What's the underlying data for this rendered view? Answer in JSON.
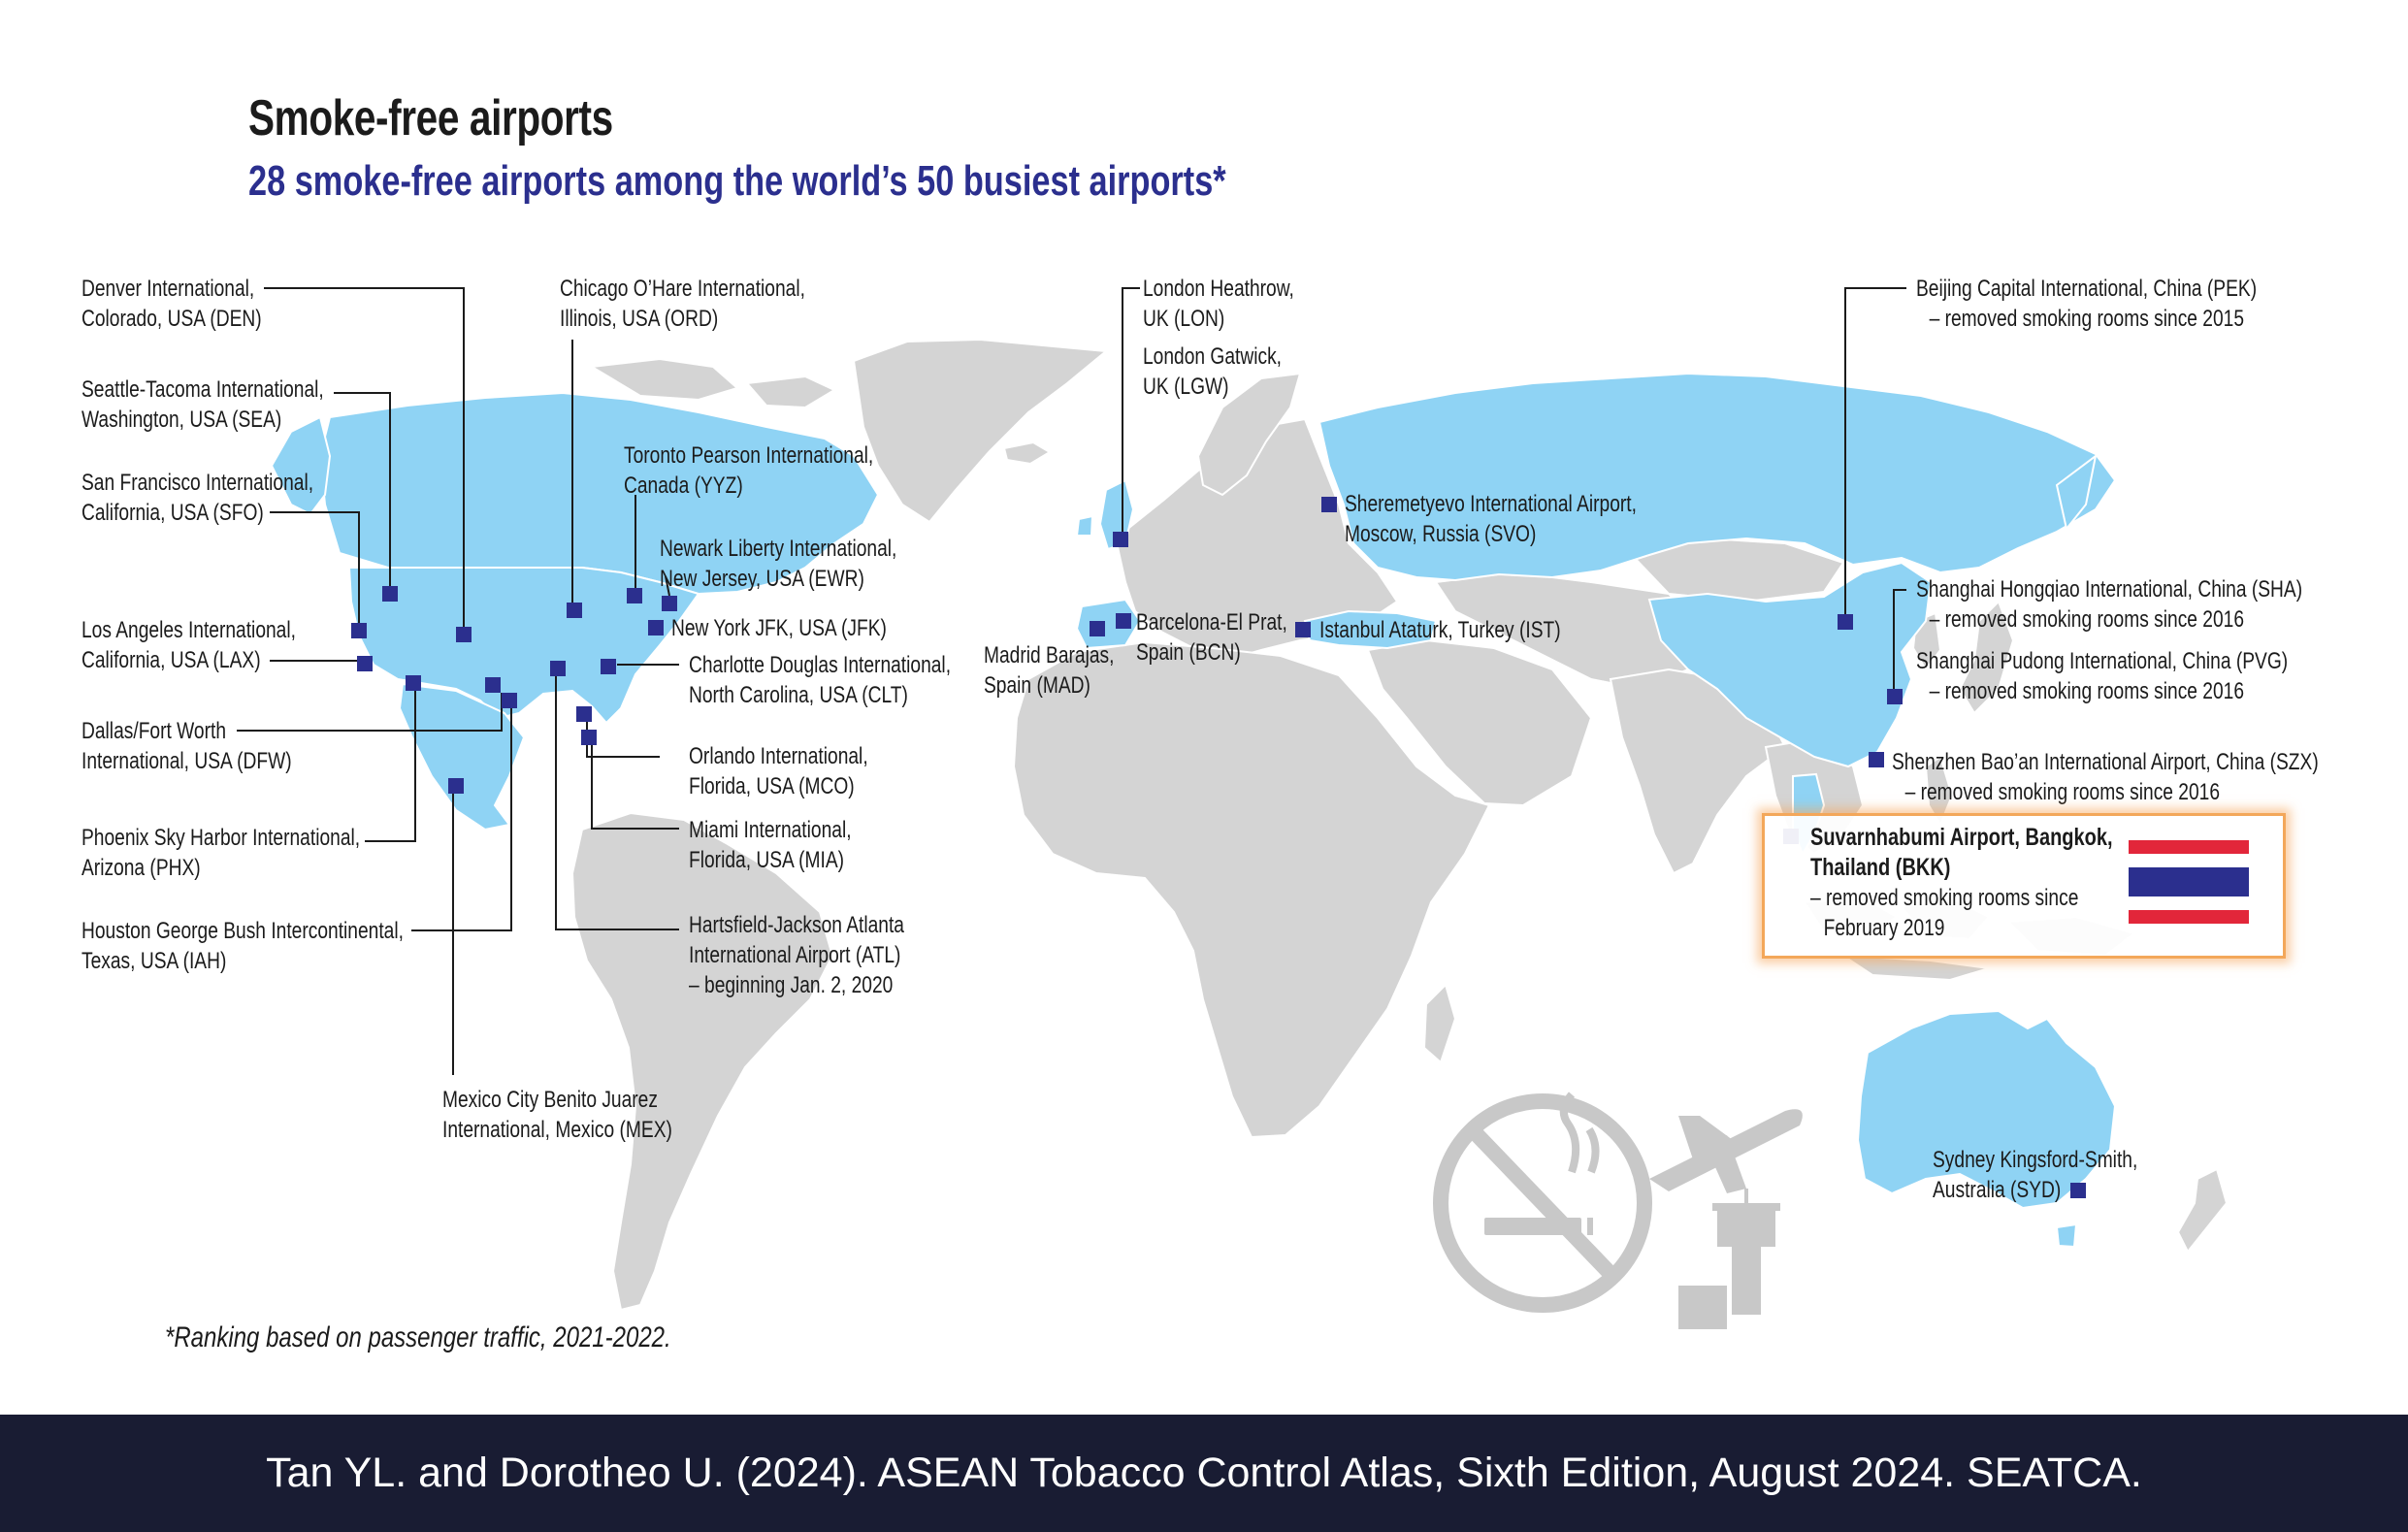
{
  "title": "Smoke-free airports",
  "subtitle": "28 smoke-free airports among the world’s 50 busiest airports*",
  "footnote": "*Ranking based on passenger traffic, 2021-2022.",
  "source": "Tan YL. and Dorotheo U. (2024). ASEAN Tobacco Control Atlas, Sixth Edition, August 2024. SEATCA.",
  "colors": {
    "smoke_free_country": "#8fd3f4",
    "other_country": "#d4d4d4",
    "marker": "#2b2f8e",
    "highlight_border": "#f3a75a",
    "footer_bg": "#191c33",
    "icon": "#c8c8c8"
  },
  "airports": {
    "den": [
      "Denver International,",
      "Colorado, USA (DEN)"
    ],
    "sea": [
      "Seattle-Tacoma International,",
      "Washington, USA (SEA)"
    ],
    "sfo": [
      "San Francisco International,",
      "California, USA (SFO)"
    ],
    "lax": [
      "Los Angeles International,",
      "California, USA (LAX)"
    ],
    "dfw": [
      "Dallas/Fort Worth",
      "International, USA (DFW)"
    ],
    "phx": [
      "Phoenix Sky Harbor International,",
      "Arizona (PHX)"
    ],
    "iah": [
      "Houston George Bush Intercontinental,",
      "Texas, USA (IAH)"
    ],
    "mex": [
      "Mexico City Benito Juarez",
      "International, Mexico (MEX)"
    ],
    "ord": [
      "Chicago O’Hare International,",
      "Illinois, USA (ORD)"
    ],
    "yyz": [
      "Toronto Pearson International,",
      "Canada (YYZ)"
    ],
    "ewr": [
      "Newark Liberty International,",
      "New Jersey, USA (EWR)"
    ],
    "jfk": [
      "New York JFK, USA (JFK)"
    ],
    "clt": [
      "Charlotte Douglas International,",
      "North Carolina, USA (CLT)"
    ],
    "mco": [
      "Orlando International,",
      "Florida, USA (MCO)"
    ],
    "mia": [
      "Miami International,",
      "Florida, USA (MIA)"
    ],
    "atl": [
      "Hartsfield-Jackson Atlanta",
      "International Airport (ATL)",
      "– beginning Jan. 2, 2020"
    ],
    "lon": [
      "London Heathrow,",
      "UK (LON)"
    ],
    "lgw": [
      "London Gatwick,",
      "UK (LGW)"
    ],
    "mad": [
      "Madrid Barajas,",
      "Spain (MAD)"
    ],
    "bcn": [
      "Barcelona-El Prat,",
      "Spain (BCN)"
    ],
    "svo": [
      "Sheremetyevo International Airport,",
      "Moscow, Russia (SVO)"
    ],
    "ist": [
      "Istanbul Ataturk, Turkey (IST)"
    ],
    "pek": [
      "Beijing Capital International, China (PEK)",
      "– removed smoking rooms since 2015"
    ],
    "sha": [
      "Shanghai Hongqiao International, China (SHA)",
      "– removed smoking rooms since 2016"
    ],
    "pvg": [
      "Shanghai Pudong International, China (PVG)",
      "– removed smoking rooms since 2016"
    ],
    "szx": [
      "Shenzhen Bao’an International Airport, China (SZX)",
      "– removed smoking rooms since 2016"
    ],
    "bkk": [
      "Suvarnhabumi Airport, Bangkok,",
      "Thailand (BKK)",
      "– removed smoking rooms since",
      "February 2019"
    ],
    "syd": [
      "Sydney Kingsford-Smith,",
      "Australia (SYD)"
    ]
  },
  "icons": [
    "no-smoking-icon",
    "airplane-icon",
    "control-tower-icon",
    "thailand-flag-icon"
  ]
}
